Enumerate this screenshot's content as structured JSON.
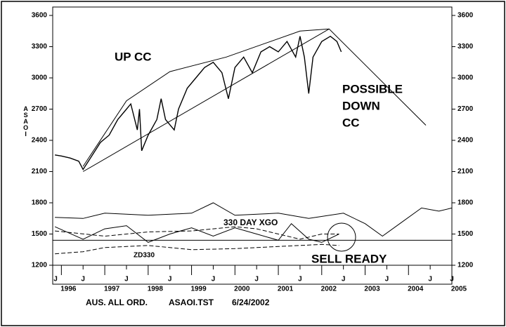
{
  "chart_data": {
    "type": "line",
    "ylabel": "ASAOI",
    "xlim": [
      1995.8,
      2005.0
    ],
    "xticks": [
      1996,
      1997,
      1998,
      1999,
      2000,
      2001,
      2002,
      2003,
      2004,
      2005
    ],
    "minor_xticks": [
      {
        "value": 1996.5,
        "label": "J"
      },
      {
        "value": 1997.5,
        "label": "J"
      },
      {
        "value": 1998.5,
        "label": "J"
      },
      {
        "value": 1999.5,
        "label": "J"
      },
      {
        "value": 2000.5,
        "label": "J"
      },
      {
        "value": 2001.5,
        "label": "J"
      },
      {
        "value": 2002.5,
        "label": "J"
      },
      {
        "value": 2003.5,
        "label": "J"
      },
      {
        "value": 2004.5,
        "label": "J"
      }
    ],
    "ylim": [
      1200,
      3600
    ],
    "yticks": [
      1200,
      1500,
      1800,
      2100,
      2400,
      2700,
      3000,
      3300,
      3600
    ],
    "series": [
      {
        "color": "#000000",
        "dash": false,
        "x": [
          1995.85,
          1996.0,
          1996.2,
          1996.4,
          1996.5,
          1996.7,
          1996.9,
          1997.1,
          1997.3,
          1997.5,
          1997.6,
          1997.75,
          1997.8,
          1997.85,
          1998.0,
          1998.2,
          1998.3,
          1998.4,
          1998.6,
          1998.7,
          1998.9,
          1999.1,
          1999.3,
          1999.5,
          1999.7,
          1999.85,
          2000.0,
          2000.2,
          2000.4,
          2000.6,
          2000.8,
          2001.0,
          2001.2,
          2001.4,
          2001.5,
          2001.6,
          2001.7,
          2001.8,
          2002.0,
          2002.2,
          2002.35,
          2002.45
        ],
        "values": [
          2260,
          2250,
          2230,
          2200,
          2120,
          2250,
          2380,
          2450,
          2600,
          2700,
          2750,
          2500,
          2700,
          2300,
          2450,
          2600,
          2800,
          2600,
          2500,
          2700,
          2900,
          3000,
          3100,
          3150,
          3050,
          2800,
          3100,
          3200,
          3050,
          3250,
          3300,
          3250,
          3350,
          3200,
          3400,
          3200,
          2850,
          3200,
          3350,
          3400,
          3350,
          3250
        ]
      },
      {
        "color": "#000000",
        "dash": false,
        "x": [
          1996.5,
          1997.5,
          1998.5,
          1999.8,
          2001.5,
          2002.17,
          2004.4
        ],
        "values": [
          2150,
          2780,
          3060,
          3200,
          3450,
          3470,
          2545
        ]
      },
      {
        "color": "#000000",
        "dash": false,
        "x": [
          1996.5,
          2002.17
        ],
        "values": [
          2100,
          3470
        ]
      },
      {
        "color": "#000000",
        "dash": false,
        "x": [
          1995.85,
          1996.5,
          1997.0,
          1998.0,
          1999.0,
          1999.5,
          2000.0,
          2001.0,
          2001.7,
          2002.5,
          2003.0,
          2003.4,
          2003.8,
          2004.3,
          2004.7,
          2005.0
        ],
        "values": [
          1660,
          1650,
          1700,
          1680,
          1700,
          1800,
          1680,
          1700,
          1650,
          1700,
          1600,
          1480,
          1600,
          1750,
          1720,
          1750
        ]
      },
      {
        "color": "#000000",
        "dash": false,
        "x": [
          1995.85,
          1996.5,
          1997.0,
          1997.5,
          1998.0,
          1998.5,
          1999.0,
          1999.5,
          2000.0,
          2000.5,
          2001.0,
          2001.3,
          2001.7,
          2002.0,
          2002.4
        ],
        "values": [
          1570,
          1450,
          1550,
          1580,
          1420,
          1500,
          1560,
          1480,
          1560,
          1500,
          1440,
          1600,
          1450,
          1420,
          1500
        ]
      },
      {
        "color": "#000000",
        "dash": true,
        "x": [
          1995.85,
          1997.0,
          1998.0,
          1999.0,
          2000.0,
          2000.5,
          2001.5,
          2002.0,
          2002.4
        ],
        "values": [
          1530,
          1480,
          1520,
          1530,
          1570,
          1550,
          1450,
          1500,
          1500
        ]
      },
      {
        "color": "#000000",
        "dash": true,
        "x": [
          1995.85,
          1996.5,
          1997.0,
          1998.0,
          1999.0,
          2000.0,
          2001.0,
          2002.0,
          2002.4
        ],
        "values": [
          1310,
          1330,
          1370,
          1390,
          1350,
          1360,
          1380,
          1400,
          1390
        ]
      },
      {
        "color": "#000000",
        "dash": false,
        "x": [
          1995.8,
          2005.0
        ],
        "values": [
          1440,
          1440
        ]
      }
    ],
    "annotations": [
      "UP CC",
      "POSSIBLE",
      "DOWN",
      "CC",
      "330 DAY XGO",
      "ZD330",
      "SELL READY"
    ],
    "footer": [
      "AUS. ALL ORD.",
      "ASAOI.TST",
      "6/24/2002"
    ]
  }
}
